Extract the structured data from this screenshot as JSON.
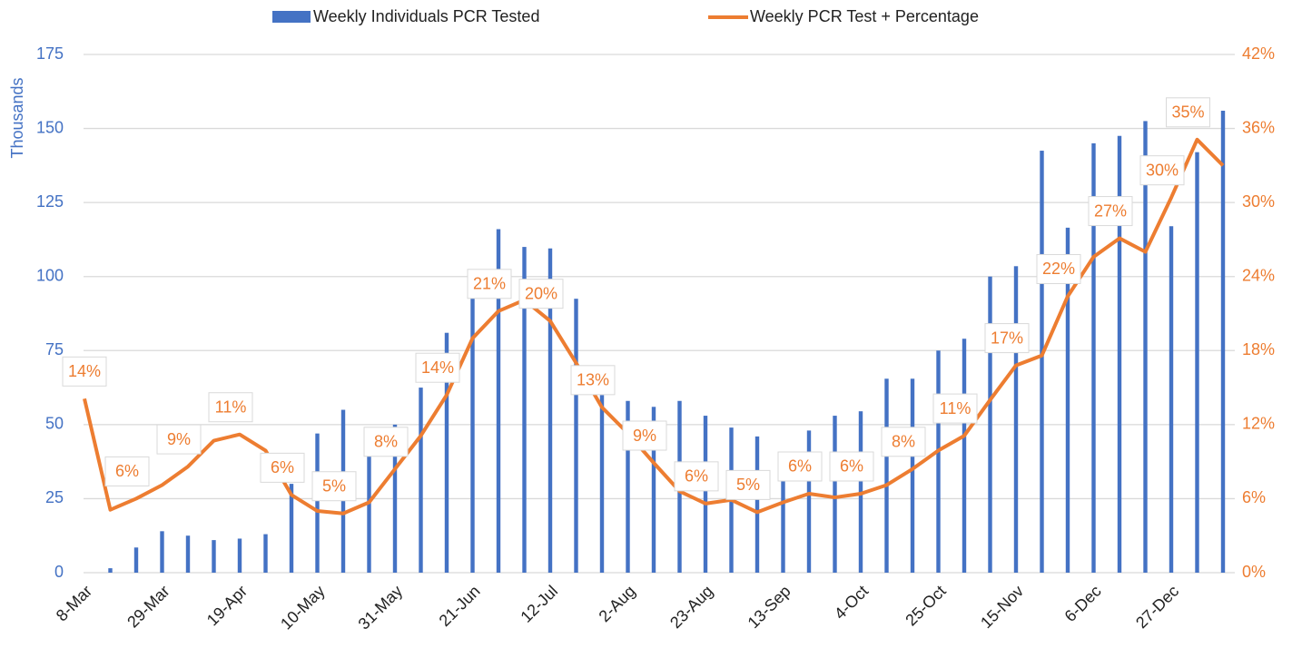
{
  "chart_data": {
    "type": "bar-line",
    "categories": [
      "8-Mar",
      null,
      null,
      "29-Mar",
      null,
      null,
      "19-Apr",
      null,
      null,
      "10-May",
      null,
      null,
      "31-May",
      null,
      null,
      "21-Jun",
      null,
      null,
      "12-Jul",
      null,
      null,
      "2-Aug",
      null,
      null,
      "23-Aug",
      null,
      null,
      "13-Sep",
      null,
      null,
      "4-Oct",
      null,
      null,
      "25-Oct",
      null,
      null,
      "15-Nov",
      null,
      null,
      "6-Dec",
      null,
      null,
      "27-Dec",
      null,
      null
    ],
    "series": [
      {
        "name": "Weekly Individuals PCR Tested",
        "type": "bar",
        "color": "#4472c4",
        "values": [
          0,
          1.5,
          8.5,
          14,
          12.5,
          11,
          11.5,
          13,
          30,
          47,
          55,
          46.5,
          50,
          62.5,
          81,
          96,
          116,
          110,
          109.5,
          92.5,
          60,
          58,
          56,
          58,
          53,
          49,
          46,
          38,
          48,
          53,
          54.5,
          65.5,
          65.5,
          75,
          79,
          100,
          103.5,
          142.5,
          116.5,
          145,
          147.5,
          152.5,
          117,
          142,
          156
        ]
      },
      {
        "name": "Weekly PCR Test + Percentage",
        "type": "line",
        "axis": "y2",
        "color": "#ed7d31",
        "values": [
          14.1,
          5.1,
          6.0,
          7.1,
          8.6,
          10.7,
          11.2,
          9.9,
          6.3,
          5.0,
          4.8,
          5.7,
          8.4,
          11.1,
          14.4,
          19.0,
          21.2,
          22.1,
          20.4,
          17.0,
          13.4,
          11.3,
          8.9,
          6.6,
          5.6,
          5.9,
          4.9,
          5.7,
          6.4,
          6.1,
          6.4,
          7.1,
          8.4,
          9.9,
          11.1,
          14.0,
          16.8,
          17.6,
          22.4,
          25.6,
          27.1,
          26.0,
          30.4,
          35.1,
          33.0
        ],
        "value_labels": [
          "14%",
          null,
          "6%",
          null,
          "9%",
          null,
          "11%",
          null,
          "6%",
          null,
          "5%",
          null,
          "8%",
          null,
          "14%",
          null,
          "21%",
          null,
          "20%",
          null,
          "13%",
          null,
          "9%",
          null,
          "6%",
          null,
          "5%",
          null,
          "6%",
          null,
          "6%",
          null,
          "8%",
          null,
          "11%",
          null,
          "17%",
          null,
          "22%",
          null,
          "27%",
          null,
          "30%",
          "35%",
          null
        ]
      }
    ],
    "y_label": "Thousands",
    "ylim": [
      0,
      175
    ],
    "yticks": [
      0,
      25,
      50,
      75,
      100,
      125,
      150,
      175
    ],
    "y2lim": [
      0,
      42
    ],
    "y2ticks": [
      {
        "value": 0,
        "label": "0%"
      },
      {
        "value": 6,
        "label": "6%"
      },
      {
        "value": 12,
        "label": "12%"
      },
      {
        "value": 18,
        "label": "18%"
      },
      {
        "value": 24,
        "label": "24%"
      },
      {
        "value": 30,
        "label": "30%"
      },
      {
        "value": 36,
        "label": "36%"
      },
      {
        "value": 42,
        "label": "42%"
      }
    ],
    "grid": true,
    "legend": "top"
  }
}
